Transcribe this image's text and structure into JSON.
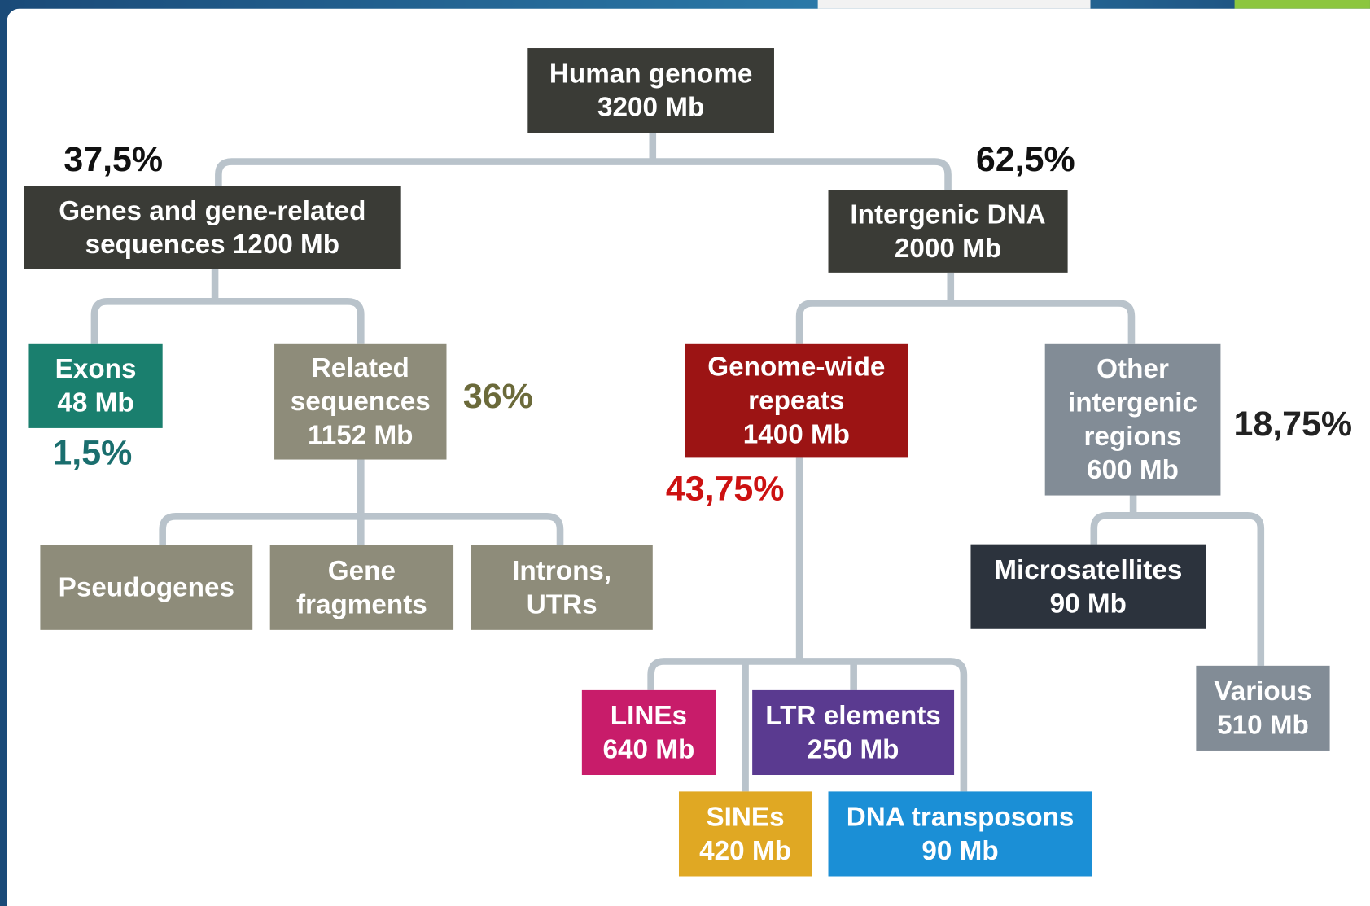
{
  "nodes": [
    {
      "lines": [
        "Human genome",
        "3200 Mb"
      ]
    },
    {
      "lines": [
        "Genes and gene-related",
        "sequences 1200 Mb"
      ]
    },
    {
      "lines": [
        "Intergenic DNA",
        "2000 Mb"
      ]
    },
    {
      "lines": [
        "Exons",
        "48 Mb"
      ]
    },
    {
      "lines": [
        "Related",
        "sequences",
        "1152 Mb"
      ]
    },
    {
      "lines": [
        "Genome-wide",
        "repeats",
        "1400 Mb"
      ]
    },
    {
      "lines": [
        "Other",
        "intergenic",
        "regions",
        "600 Mb"
      ]
    },
    {
      "lines": [
        "Pseudogenes"
      ]
    },
    {
      "lines": [
        "Gene",
        "fragments"
      ]
    },
    {
      "lines": [
        "Introns,",
        "UTRs"
      ]
    },
    {
      "lines": [
        "Microsatellites",
        "90 Mb"
      ]
    },
    {
      "lines": [
        "LINEs",
        "640 Mb"
      ]
    },
    {
      "lines": [
        "LTR elements",
        "250 Mb"
      ]
    },
    {
      "lines": [
        "Various",
        "510 Mb"
      ]
    },
    {
      "lines": [
        "SINEs",
        "420 Mb"
      ]
    },
    {
      "lines": [
        "DNA transposons",
        "90 Mb"
      ]
    }
  ],
  "annotations": [
    "37,5%",
    "62,5%",
    "1,5%",
    "36%",
    "43,75%",
    "18,75%"
  ]
}
